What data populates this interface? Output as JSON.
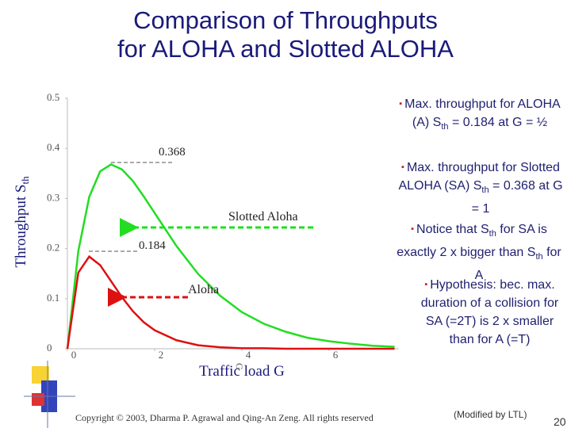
{
  "title_lines": [
    "Comparison of Throughputs",
    "for ALOHA and Slotted ALOHA"
  ],
  "chart_data": {
    "type": "line",
    "y_label": "Throughput S",
    "y_label_sub": "th",
    "x_label": "Traffic load G",
    "axis_note": "G",
    "x": [
      0,
      0.25,
      0.5,
      0.75,
      1,
      1.25,
      1.5,
      1.75,
      2,
      2.5,
      3,
      3.5,
      4,
      4.5,
      5,
      5.5,
      6,
      6.5,
      7,
      7.5
    ],
    "series": [
      {
        "name": "Slotted Aloha",
        "color": "#22dd22",
        "values": [
          0,
          0.195,
          0.303,
          0.354,
          0.368,
          0.358,
          0.335,
          0.304,
          0.271,
          0.205,
          0.149,
          0.106,
          0.073,
          0.05,
          0.034,
          0.022,
          0.015,
          0.01,
          0.006,
          0.004
        ]
      },
      {
        "name": "Aloha",
        "color": "#dd1111",
        "values": [
          0,
          0.152,
          0.184,
          0.167,
          0.135,
          0.103,
          0.075,
          0.053,
          0.037,
          0.017,
          0.007,
          0.003,
          0.001,
          0.001,
          0,
          0,
          0,
          0,
          0,
          0
        ]
      }
    ],
    "xlim": [
      0,
      7.6
    ],
    "ylim": [
      0,
      0.5
    ],
    "xticks": [
      0,
      2,
      4,
      6
    ],
    "yticks": [
      0,
      0.1,
      0.2,
      0.3,
      0.4,
      0.5
    ],
    "annotations": [
      "0.368",
      "0.184"
    ]
  },
  "bullets": [
    {
      "level": 1,
      "parts": [
        "Max. throughput for ALOHA (A) S",
        "th",
        " = 0.184 at G = ½"
      ]
    },
    {
      "level": 1,
      "parts": [
        "Max. throughput for Slotted ALOHA (SA) S",
        "th",
        " = 0.368 at G = 1"
      ]
    },
    {
      "level": 1,
      "parts": [
        "Notice that S",
        "th",
        " for SA is exactly 2 x bigger than S",
        "th",
        " for A"
      ]
    },
    {
      "level": 2,
      "parts": [
        "Hypothesis: bec. max. duration of a collision for SA (=2T) is 2 x smaller than for A (=T)"
      ]
    }
  ],
  "footer": {
    "copyright": "Copyright © 2003, Dharma P. Agrawal and Qing-An Zeng. All rights reserved",
    "modified": "(Modified by LTL)",
    "page": "20"
  }
}
